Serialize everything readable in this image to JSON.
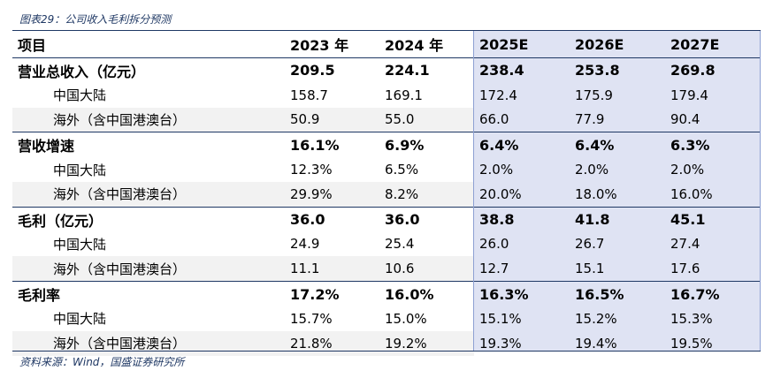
{
  "title": "图表29：公司收入毛利拆分预测",
  "header": [
    "项目",
    "2023 年",
    "2024 年",
    "2025E",
    "2026E",
    "2027E"
  ],
  "rows": [
    {
      "label": "营业总收入（亿元）",
      "values": [
        "209.5",
        "224.1",
        "238.4",
        "253.8",
        "269.8"
      ],
      "bold": true,
      "group": false
    },
    {
      "label": "中国大陆",
      "values": [
        "158.7",
        "169.1",
        "172.4",
        "175.9",
        "179.4"
      ],
      "bold": false,
      "shaded": false
    },
    {
      "label": "海外（含中国港澳台）",
      "values": [
        "50.9",
        "55.0",
        "66.0",
        "77.9",
        "90.4"
      ],
      "bold": false,
      "shaded": true
    },
    {
      "label": "营收增速",
      "values": [
        "16.1%",
        "6.9%",
        "6.4%",
        "6.4%",
        "6.3%"
      ],
      "bold": true,
      "group": true
    },
    {
      "label": "中国大陆",
      "values": [
        "12.3%",
        "6.5%",
        "2.0%",
        "2.0%",
        "2.0%"
      ],
      "bold": false,
      "shaded": false
    },
    {
      "label": "海外（含中国港澳台）",
      "values": [
        "29.9%",
        "8.2%",
        "20.0%",
        "18.0%",
        "16.0%"
      ],
      "bold": false,
      "shaded": true
    },
    {
      "label": "毛利（亿元）",
      "values": [
        "36.0",
        "36.0",
        "38.8",
        "41.8",
        "45.1"
      ],
      "bold": true,
      "group": true
    },
    {
      "label": "中国大陆",
      "values": [
        "24.9",
        "25.4",
        "26.0",
        "26.7",
        "27.4"
      ],
      "bold": false,
      "shaded": false
    },
    {
      "label": "海外（含中国港澳台）",
      "values": [
        "11.1",
        "10.6",
        "12.7",
        "15.1",
        "17.6"
      ],
      "bold": false,
      "shaded": true
    },
    {
      "label": "毛利率",
      "values": [
        "17.2%",
        "16.0%",
        "16.3%",
        "16.5%",
        "16.7%"
      ],
      "bold": true,
      "group": true
    },
    {
      "label": "中国大陆",
      "values": [
        "15.7%",
        "15.0%",
        "15.1%",
        "15.2%",
        "15.3%"
      ],
      "bold": false,
      "shaded": false
    },
    {
      "label": "海外（含中国港澳台）",
      "values": [
        "21.8%",
        "19.2%",
        "19.3%",
        "19.4%",
        "19.5%"
      ],
      "bold": false,
      "shaded": true
    }
  ],
  "source": "资料来源：Wind，国盛证券研究所"
}
